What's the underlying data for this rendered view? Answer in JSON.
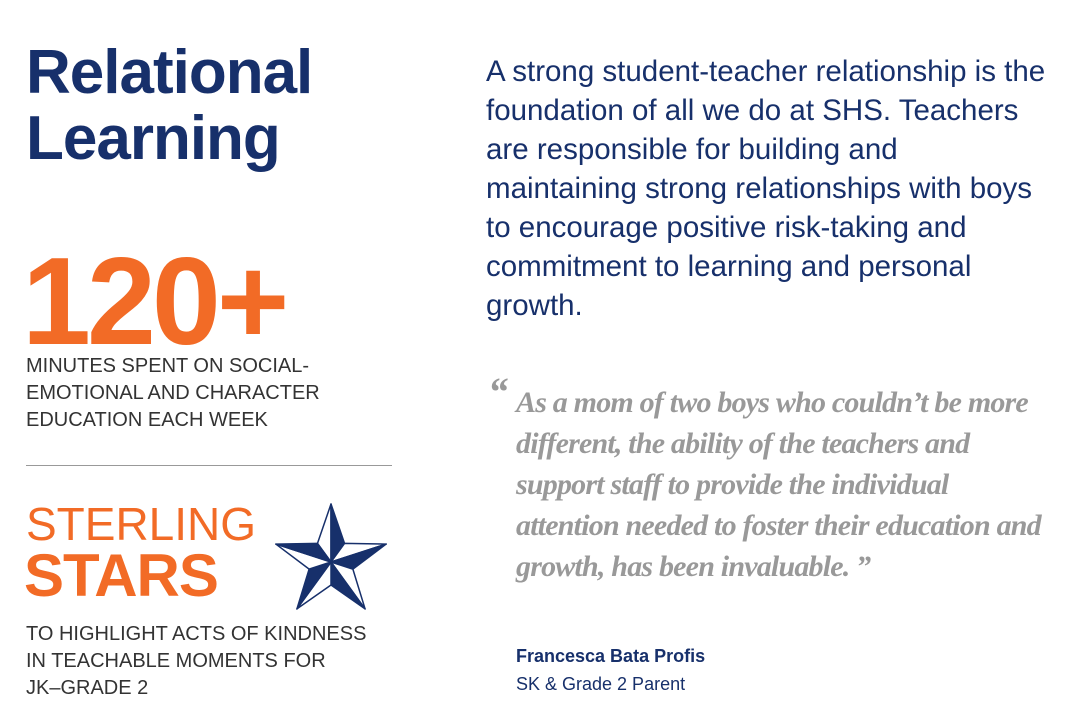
{
  "title": [
    "Relational",
    "Learning"
  ],
  "stat": {
    "value": "120+",
    "caption": [
      "Minutes spent on social-",
      "emotional and character",
      "education each week"
    ]
  },
  "sterling": {
    "line1": "Sterling",
    "line2": "Stars",
    "caption": [
      "To highlight acts of kindness",
      "in teachable moments for",
      "JK–Grade 2"
    ],
    "icon": "nautical-star-icon"
  },
  "body": "A strong student-teacher relationship is the foundation of all we do at SHS. Teachers are responsible for building and maintaining strong relationships with boys to encourage positive risk-taking and commitment to learning and personal growth.",
  "quote": {
    "open": "“",
    "text": "As a mom of two boys who couldn’t be more different, the ability of the teachers and support staff to provide the individual attention needed to foster their education and growth, has been invaluable.",
    "close": " ”",
    "author": "Francesca Bata Profis",
    "role": "SK & Grade 2 Parent"
  },
  "colors": {
    "navy": "#17306b",
    "orange": "#f26b26",
    "grey": "#999999"
  }
}
